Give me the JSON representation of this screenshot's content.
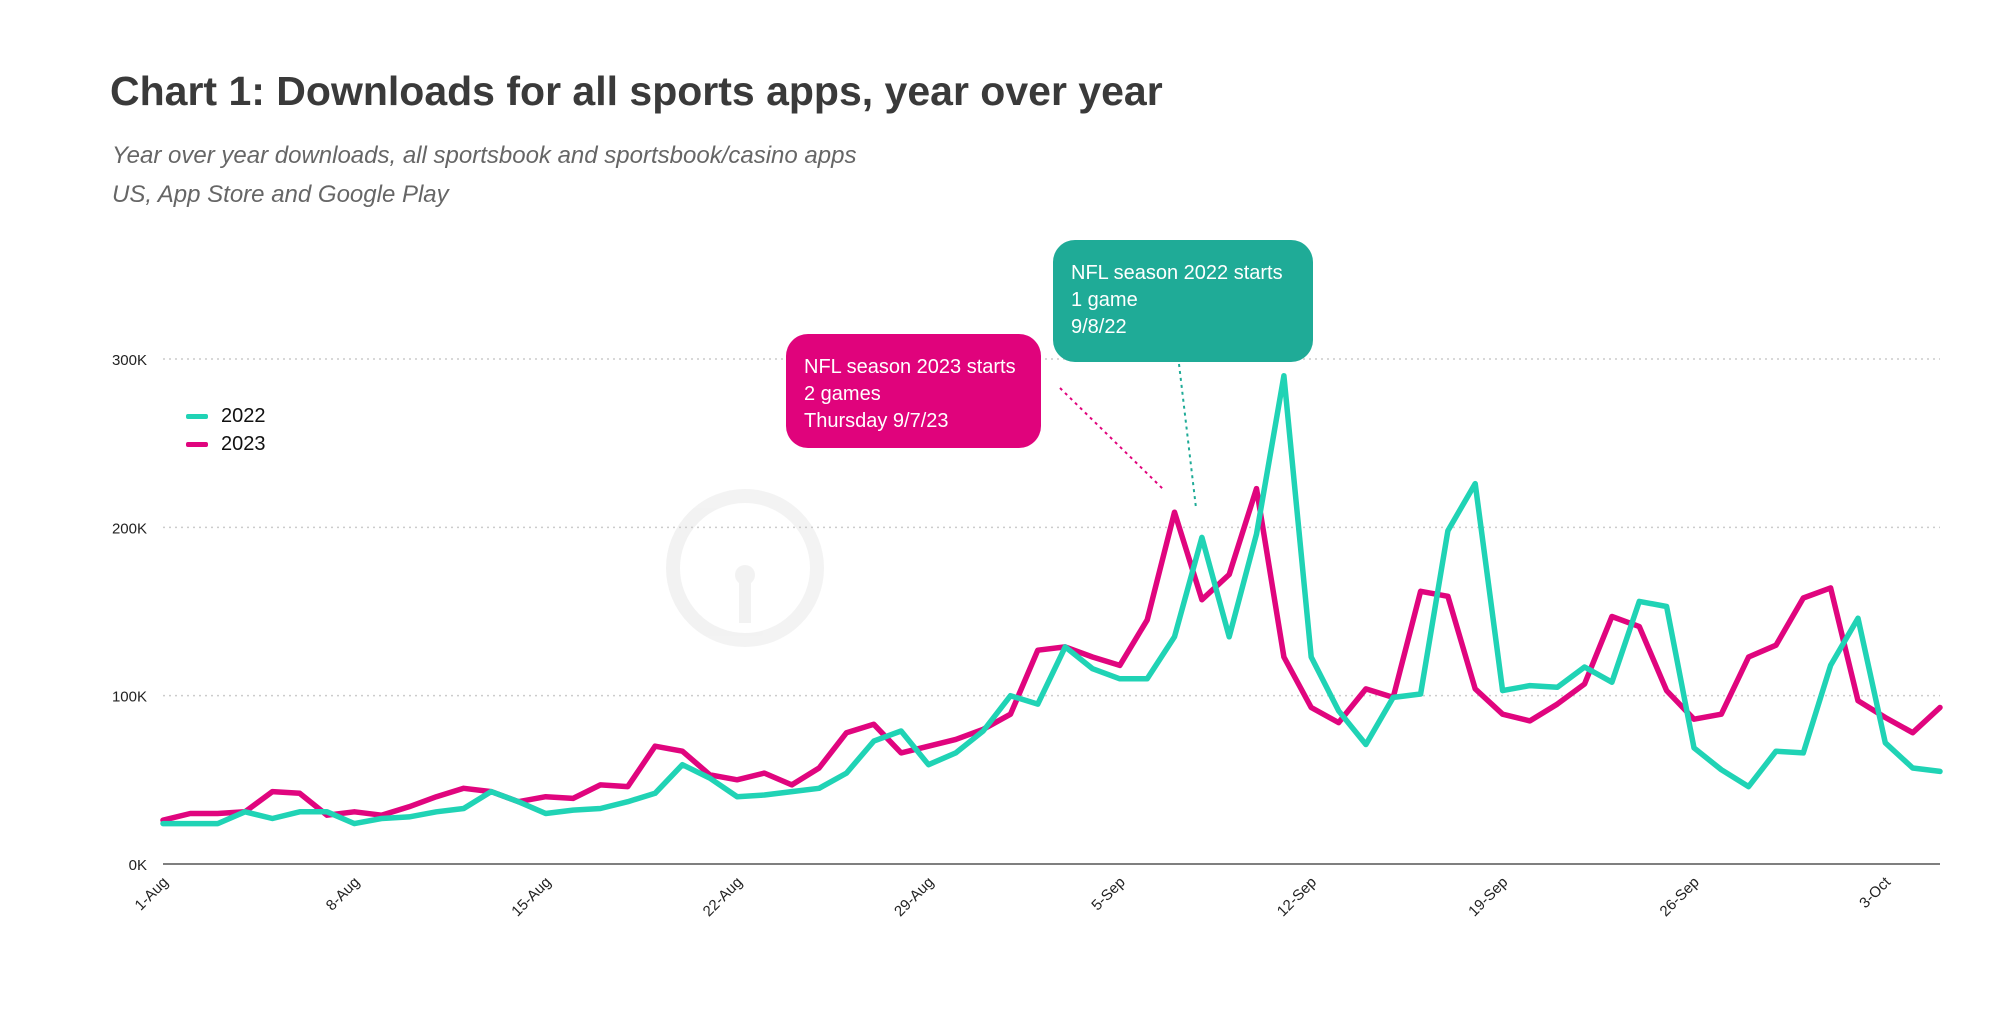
{
  "header": {
    "title": "Chart 1: Downloads for all sports apps, year over year",
    "subtitle_line1": "Year over year downloads, all sportsbook and sportsbook/casino apps",
    "subtitle_line2": "US, App Store and Google Play"
  },
  "colors": {
    "series_2022": "#20d3b5",
    "series_2023": "#e0057e",
    "callout_2022": "#1fab97",
    "callout_2023": "#e0037c",
    "grid": "#cccccc",
    "axis": "#555555"
  },
  "callouts": {
    "c2023": {
      "line1": "NFL season 2023 starts",
      "line2": "2 games",
      "line3": "Thursday 9/7/23"
    },
    "c2022": {
      "line1": "NFL season 2022 starts",
      "line2": "1 game",
      "line3": "9/8/22"
    }
  },
  "chart_data": {
    "type": "line",
    "title": "Chart 1: Downloads for all sports apps, year over year",
    "x": [
      "1-Aug",
      "2-Aug",
      "3-Aug",
      "4-Aug",
      "5-Aug",
      "6-Aug",
      "7-Aug",
      "8-Aug",
      "9-Aug",
      "10-Aug",
      "11-Aug",
      "12-Aug",
      "13-Aug",
      "14-Aug",
      "15-Aug",
      "16-Aug",
      "17-Aug",
      "18-Aug",
      "19-Aug",
      "20-Aug",
      "21-Aug",
      "22-Aug",
      "23-Aug",
      "24-Aug",
      "25-Aug",
      "26-Aug",
      "27-Aug",
      "28-Aug",
      "29-Aug",
      "30-Aug",
      "31-Aug",
      "1-Sep",
      "2-Sep",
      "3-Sep",
      "4-Sep",
      "5-Sep",
      "6-Sep",
      "7-Sep",
      "8-Sep",
      "9-Sep",
      "10-Sep",
      "11-Sep",
      "12-Sep",
      "13-Sep",
      "14-Sep",
      "15-Sep",
      "16-Sep",
      "17-Sep",
      "18-Sep",
      "19-Sep",
      "20-Sep",
      "21-Sep",
      "22-Sep",
      "23-Sep",
      "24-Sep",
      "25-Sep",
      "26-Sep",
      "27-Sep",
      "28-Sep",
      "29-Sep",
      "30-Sep",
      "1-Oct",
      "2-Oct",
      "3-Oct",
      "4-Oct",
      "5-Oct"
    ],
    "x_ticks": [
      "1-Aug",
      "8-Aug",
      "15-Aug",
      "22-Aug",
      "29-Aug",
      "5-Sep",
      "12-Sep",
      "19-Sep",
      "26-Sep",
      "3-Oct"
    ],
    "y_ticks": [
      0,
      100000,
      200000,
      300000
    ],
    "y_tick_labels": [
      "0K",
      "100K",
      "200K",
      "300K"
    ],
    "ylim": [
      0,
      300000
    ],
    "grid": true,
    "legend_position": "left",
    "series": [
      {
        "name": "2022",
        "values": [
          24000,
          24000,
          24000,
          31000,
          27000,
          31000,
          31000,
          24000,
          27000,
          28000,
          31000,
          33000,
          43000,
          37000,
          30000,
          32000,
          33000,
          37000,
          42000,
          59000,
          51000,
          40000,
          41000,
          43000,
          45000,
          54000,
          73000,
          79000,
          59000,
          66000,
          79000,
          100000,
          95000,
          129000,
          116000,
          110000,
          110000,
          135000,
          194000,
          135000,
          196000,
          290000,
          123000,
          91000,
          71000,
          99000,
          101000,
          198000,
          226000,
          103000,
          106000,
          105000,
          117000,
          108000,
          156000,
          153000,
          69000,
          56000,
          46000,
          67000,
          66000,
          118000,
          146000,
          72000,
          57000,
          55000
        ]
      },
      {
        "name": "2023",
        "values": [
          26000,
          30000,
          30000,
          31000,
          43000,
          42000,
          29000,
          31000,
          29000,
          34000,
          40000,
          45000,
          43000,
          37000,
          40000,
          39000,
          47000,
          46000,
          70000,
          67000,
          53000,
          50000,
          54000,
          47000,
          57000,
          78000,
          83000,
          66000,
          70000,
          74000,
          80000,
          89000,
          127000,
          129000,
          123000,
          118000,
          145000,
          209000,
          157000,
          172000,
          223000,
          123000,
          93000,
          84000,
          104000,
          99000,
          162000,
          159000,
          104000,
          89000,
          85000,
          95000,
          107000,
          147000,
          141000,
          103000,
          86000,
          89000,
          123000,
          130000,
          158000,
          164000,
          97000,
          87000,
          78000,
          93000
        ]
      }
    ]
  }
}
